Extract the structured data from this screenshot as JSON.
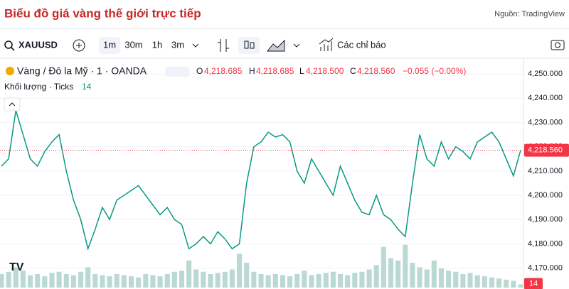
{
  "header": {
    "title": "Biểu đồ giá vàng thế giới trực tiếp",
    "source": "Nguồn: TradingView"
  },
  "toolbar": {
    "symbol": "XAUUSD",
    "intervals": [
      "1m",
      "30m",
      "1h",
      "3m"
    ],
    "indicators": "Các chỉ báo"
  },
  "legend": {
    "instrument": "Vàng / Đô la Mỹ · 1 · OANDA",
    "o_label": "O",
    "o": "4,218.685",
    "h_label": "H",
    "h": "4,218.685",
    "l_label": "L",
    "l": "4,218.500",
    "c_label": "C",
    "c": "4,218.560",
    "change": "−0.055 (−0.00%)",
    "volume_title": "Khối lượng · Ticks"
  },
  "chart_data": {
    "type": "line",
    "categories": [
      null,
      null,
      null,
      null,
      null,
      null,
      null,
      null,
      null,
      null,
      null,
      null,
      null,
      null,
      null,
      null,
      null,
      null,
      null,
      null,
      null,
      null,
      null,
      null,
      null,
      null,
      null,
      null,
      null,
      null,
      null,
      null,
      null,
      null,
      null,
      null,
      null,
      null,
      null,
      null,
      null,
      null,
      null,
      null,
      null,
      null,
      null,
      null,
      null,
      null,
      null,
      null,
      null,
      null,
      null,
      null,
      null,
      null,
      null,
      null,
      null,
      null,
      null,
      null,
      null,
      null,
      null,
      null,
      null,
      null,
      null,
      null,
      null
    ],
    "series": [
      {
        "name": "XAUUSD",
        "color": "#089981",
        "values": [
          4212,
          4215,
          4235,
          4225,
          4215,
          4212,
          4218,
          4222,
          4225,
          4210,
          4198,
          4190,
          4178,
          4186,
          4195,
          4190,
          4198,
          4200,
          4202,
          4204,
          4200,
          4196,
          4192,
          4195,
          4190,
          4188,
          4178,
          4180,
          4183,
          4180,
          4185,
          4182,
          4178,
          4180,
          4205,
          4220,
          4222,
          4226,
          4224,
          4225,
          4222,
          4210,
          4205,
          4215,
          4210,
          4205,
          4200,
          4212,
          4205,
          4198,
          4193,
          4192,
          4200,
          4192,
          4190,
          4186,
          4183,
          4205,
          4225,
          4215,
          4212,
          4222,
          4215,
          4220,
          4218,
          4215,
          4222,
          4224,
          4226,
          4222,
          4215,
          4208,
          4218.56
        ]
      },
      {
        "name": "Khối lượng",
        "color": "#9ec9c0",
        "axis": "y2",
        "values": [
          60,
          70,
          90,
          75,
          55,
          60,
          50,
          65,
          70,
          60,
          55,
          70,
          90,
          60,
          55,
          50,
          60,
          55,
          50,
          45,
          60,
          55,
          50,
          60,
          70,
          75,
          120,
          80,
          70,
          60,
          65,
          70,
          80,
          150,
          110,
          70,
          60,
          55,
          60,
          55,
          50,
          60,
          75,
          55,
          60,
          65,
          70,
          60,
          55,
          65,
          70,
          80,
          100,
          180,
          130,
          120,
          190,
          110,
          90,
          80,
          120,
          85,
          75,
          70,
          60,
          65,
          55,
          50,
          45,
          40,
          35,
          30,
          14
        ]
      }
    ],
    "ylim": [
      4162,
      4255
    ],
    "yticks": [
      {
        "value": 4170,
        "label": "4,170.000"
      },
      {
        "value": 4180,
        "label": "4,180.000"
      },
      {
        "value": 4190,
        "label": "4,190.000"
      },
      {
        "value": 4200,
        "label": "4,200.000"
      },
      {
        "value": 4210,
        "label": "4,210.000"
      },
      {
        "value": 4220,
        "label": "4,220.000"
      },
      {
        "value": 4230,
        "label": "4,230.000"
      },
      {
        "value": 4240,
        "label": "4,240.000"
      },
      {
        "value": 4250,
        "label": "4,250.000"
      }
    ],
    "y2lim": [
      0,
      1000
    ],
    "last_price": {
      "value": 4218.56,
      "label": "4,218.560"
    },
    "last_volume": 14
  }
}
